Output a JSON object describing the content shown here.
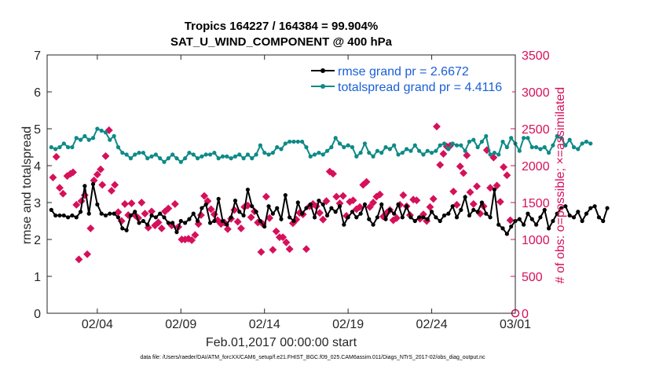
{
  "chart_data": {
    "type": "line",
    "title": "Tropics 164227 / 164384 = 99.904%",
    "subtitle": "SAT_U_WIND_COMPONENT @ 400 hPa",
    "xlabel": "Feb.01,2017 00:00:00 start",
    "ylabel": "rmse and totalspread",
    "y2label": "# of obs: o=possible; ×=assimilated",
    "footer": "data file: /Users/raeder/DAI/ATM_forcXX/CAM6_setup/f.e21.FHIST_BGC.f09_025.CAM6assim.011/Diags_NTrS_2017-02/obs_diag_output.nc",
    "xlim": [
      1,
      29
    ],
    "ylim": [
      0,
      7
    ],
    "y2lim": [
      0,
      3500
    ],
    "xticks": [
      {
        "v": 4,
        "label": "02/04"
      },
      {
        "v": 9,
        "label": "02/09"
      },
      {
        "v": 14,
        "label": "02/14"
      },
      {
        "v": 19,
        "label": "02/19"
      },
      {
        "v": 24,
        "label": "02/24"
      },
      {
        "v": 29,
        "label": "03/01"
      }
    ],
    "yticks": [
      "0",
      "1",
      "2",
      "3",
      "4",
      "5",
      "6",
      "7"
    ],
    "y2ticks": [
      "0",
      "500",
      "1000",
      "1500",
      "2000",
      "2500",
      "3000",
      "3500"
    ],
    "legend_position": "top-right",
    "colors": {
      "rmse": "#000000",
      "spread": "#0e8a87",
      "obs": "#d6105a",
      "legend_text": "#1a5fd6"
    },
    "series": [
      {
        "name": "rmse grand pr = 2.6672",
        "x_start": 1.25,
        "x_step": 0.25,
        "values": [
          2.8,
          2.65,
          2.65,
          2.65,
          2.6,
          2.65,
          2.6,
          2.75,
          3.45,
          2.7,
          3.5,
          2.95,
          2.7,
          2.65,
          2.7,
          2.7,
          2.6,
          2.3,
          2.25,
          2.65,
          2.75,
          2.45,
          2.5,
          2.4,
          2.65,
          2.6,
          2.7,
          2.6,
          2.45,
          2.45,
          2.2,
          2.5,
          2.45,
          2.55,
          2.7,
          2.5,
          2.85,
          2.95,
          2.45,
          2.5,
          3.1,
          2.5,
          2.4,
          2.6,
          3.05,
          2.75,
          2.65,
          3.35,
          2.9,
          2.75,
          2.5,
          2.35,
          2.9,
          2.7,
          2.85,
          2.55,
          3.2,
          2.6,
          2.5,
          3.0,
          2.7,
          2.85,
          2.95,
          2.6,
          3.05,
          2.95,
          2.65,
          2.85,
          2.75,
          2.9,
          2.4,
          2.6,
          2.75,
          2.6,
          2.7,
          2.95,
          2.55,
          2.4,
          2.6,
          2.95,
          2.55,
          2.8,
          2.7,
          2.95,
          2.6,
          2.9,
          2.6,
          2.5,
          2.6,
          2.6,
          2.55,
          2.75,
          2.6,
          2.5,
          2.65,
          2.7,
          2.9,
          2.6,
          2.8,
          3.15,
          2.65,
          2.8,
          2.75,
          3.0,
          2.7,
          2.6,
          3.35,
          2.4,
          2.3,
          2.15,
          2.35,
          2.5,
          2.55,
          2.4,
          2.7,
          2.55,
          2.4,
          2.6,
          2.8,
          2.3,
          2.5,
          2.7,
          2.85,
          2.9,
          2.65,
          2.6,
          2.75,
          2.5,
          2.7,
          2.85,
          2.9,
          2.6,
          2.5,
          2.85
        ]
      },
      {
        "name": "totalspread grand pr = 4.4116",
        "x_start": 1.25,
        "x_step": 0.25,
        "values": [
          4.5,
          4.45,
          4.5,
          4.6,
          4.5,
          4.5,
          4.75,
          4.7,
          4.8,
          4.7,
          4.75,
          5.0,
          4.95,
          4.9,
          4.7,
          4.8,
          4.5,
          4.35,
          4.3,
          4.2,
          4.3,
          4.35,
          4.35,
          4.2,
          4.25,
          4.3,
          4.2,
          4.1,
          4.2,
          4.3,
          4.2,
          4.1,
          4.2,
          4.35,
          4.3,
          4.2,
          4.25,
          4.3,
          4.3,
          4.35,
          4.2,
          4.25,
          4.25,
          4.2,
          4.25,
          4.3,
          4.2,
          4.3,
          4.2,
          4.3,
          4.55,
          4.35,
          4.3,
          4.35,
          4.5,
          4.45,
          4.6,
          4.65,
          4.65,
          4.65,
          4.65,
          4.5,
          4.25,
          4.3,
          4.35,
          4.3,
          4.4,
          4.5,
          4.75,
          4.6,
          4.5,
          4.55,
          4.5,
          4.25,
          4.35,
          4.6,
          4.35,
          4.25,
          4.4,
          4.35,
          4.5,
          4.45,
          4.55,
          4.3,
          4.35,
          4.45,
          4.4,
          4.55,
          4.4,
          4.3,
          4.4,
          4.35,
          4.4,
          4.55,
          4.6,
          4.45,
          4.6,
          4.55,
          4.55,
          4.4,
          4.65,
          4.7,
          4.5,
          4.65,
          4.8,
          4.3,
          4.35,
          4.3,
          4.65,
          4.5,
          4.75,
          4.6,
          4.4,
          4.75,
          4.75,
          4.5,
          4.5,
          4.45,
          4.5,
          4.35,
          4.55,
          4.8,
          4.75,
          4.55,
          4.7,
          4.5,
          4.45,
          4.6,
          4.65,
          4.6
        ]
      },
      {
        "name": "obs assimilated",
        "points": [
          [
            1.35,
            1840
          ],
          [
            1.55,
            2120
          ],
          [
            1.75,
            1700
          ],
          [
            1.95,
            1620
          ],
          [
            2.2,
            1860
          ],
          [
            2.4,
            1890
          ],
          [
            2.55,
            1910
          ],
          [
            2.75,
            1470
          ],
          [
            2.9,
            730
          ],
          [
            3.05,
            1520
          ],
          [
            3.25,
            1600
          ],
          [
            3.4,
            800
          ],
          [
            3.6,
            1150
          ],
          [
            3.8,
            1800
          ],
          [
            4.0,
            1880
          ],
          [
            4.2,
            1950
          ],
          [
            4.3,
            1740
          ],
          [
            4.5,
            2130
          ],
          [
            4.7,
            2480
          ],
          [
            4.85,
            1660
          ],
          [
            5.05,
            1740
          ],
          [
            5.25,
            1370
          ],
          [
            5.45,
            1250
          ],
          [
            5.65,
            1480
          ],
          [
            5.85,
            1330
          ],
          [
            6.05,
            1490
          ],
          [
            6.25,
            1330
          ],
          [
            6.45,
            1290
          ],
          [
            6.65,
            1500
          ],
          [
            6.85,
            1350
          ],
          [
            7.05,
            1160
          ],
          [
            7.25,
            1380
          ],
          [
            7.45,
            1190
          ],
          [
            7.65,
            1230
          ],
          [
            7.85,
            1150
          ],
          [
            8.05,
            1380
          ],
          [
            8.25,
            1420
          ],
          [
            8.45,
            1190
          ],
          [
            8.65,
            1480
          ],
          [
            8.85,
            1170
          ],
          [
            9.05,
            1000
          ],
          [
            9.25,
            1000
          ],
          [
            9.45,
            1010
          ],
          [
            9.65,
            990
          ],
          [
            9.85,
            1060
          ],
          [
            10.05,
            1210
          ],
          [
            10.2,
            1330
          ],
          [
            10.4,
            1590
          ],
          [
            10.6,
            1520
          ],
          [
            10.8,
            1410
          ],
          [
            11.0,
            1340
          ],
          [
            11.2,
            1260
          ],
          [
            11.4,
            1210
          ],
          [
            11.6,
            1230
          ],
          [
            11.8,
            1140
          ],
          [
            12.0,
            1280
          ],
          [
            12.2,
            1400
          ],
          [
            12.4,
            1240
          ],
          [
            12.6,
            1150
          ],
          [
            12.8,
            1440
          ],
          [
            13.0,
            1460
          ],
          [
            13.2,
            1300
          ],
          [
            13.4,
            1380
          ],
          [
            13.6,
            1230
          ],
          [
            13.8,
            830
          ],
          [
            13.9,
            1210
          ],
          [
            14.1,
            1580
          ],
          [
            14.3,
            1290
          ],
          [
            14.5,
            860
          ],
          [
            14.7,
            1110
          ],
          [
            14.9,
            1030
          ],
          [
            15.1,
            1030
          ],
          [
            15.3,
            960
          ],
          [
            15.5,
            870
          ],
          [
            15.7,
            1220
          ],
          [
            15.9,
            1270
          ],
          [
            16.1,
            1360
          ],
          [
            16.3,
            1340
          ],
          [
            16.5,
            870
          ],
          [
            16.7,
            1450
          ],
          [
            16.9,
            1480
          ],
          [
            17.1,
            1450
          ],
          [
            17.3,
            1360
          ],
          [
            17.5,
            1270
          ],
          [
            17.7,
            1520
          ],
          [
            17.9,
            1920
          ],
          [
            18.1,
            1890
          ],
          [
            18.3,
            1580
          ],
          [
            18.5,
            1490
          ],
          [
            18.7,
            1590
          ],
          [
            18.9,
            1320
          ],
          [
            19.1,
            1510
          ],
          [
            19.3,
            1530
          ],
          [
            19.5,
            1410
          ],
          [
            19.7,
            1440
          ],
          [
            19.9,
            1740
          ],
          [
            20.1,
            1780
          ],
          [
            20.3,
            1440
          ],
          [
            20.5,
            1500
          ],
          [
            20.7,
            1580
          ],
          [
            20.9,
            1610
          ],
          [
            21.1,
            1310
          ],
          [
            21.3,
            1360
          ],
          [
            21.5,
            1400
          ],
          [
            21.7,
            1260
          ],
          [
            21.9,
            1290
          ],
          [
            22.1,
            1470
          ],
          [
            22.3,
            1600
          ],
          [
            22.5,
            1450
          ],
          [
            22.7,
            1330
          ],
          [
            22.9,
            1540
          ],
          [
            23.1,
            1530
          ],
          [
            23.3,
            1280
          ],
          [
            23.5,
            1340
          ],
          [
            23.7,
            1250
          ],
          [
            23.9,
            1440
          ],
          [
            24.1,
            1550
          ],
          [
            24.3,
            2530
          ],
          [
            24.5,
            2010
          ],
          [
            24.7,
            2160
          ],
          [
            24.9,
            2260
          ],
          [
            25.1,
            2270
          ],
          [
            25.3,
            1650
          ],
          [
            25.5,
            1470
          ],
          [
            25.7,
            1990
          ],
          [
            25.9,
            1900
          ],
          [
            26.1,
            2140
          ],
          [
            26.3,
            1640
          ],
          [
            26.5,
            1480
          ],
          [
            26.7,
            1720
          ],
          [
            26.9,
            1350
          ],
          [
            27.1,
            1450
          ],
          [
            27.3,
            2210
          ],
          [
            27.5,
            1700
          ],
          [
            27.7,
            2110
          ],
          [
            27.9,
            1730
          ],
          [
            28.1,
            1510
          ],
          [
            28.3,
            1980
          ],
          [
            28.5,
            1870
          ],
          [
            28.7,
            1260
          ]
        ]
      },
      {
        "name": "obs possible",
        "points": [
          [
            29,
            0
          ]
        ]
      }
    ]
  }
}
